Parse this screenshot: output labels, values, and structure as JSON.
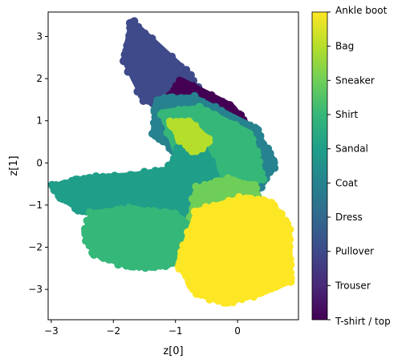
{
  "chart_data": {
    "type": "scatter",
    "title": "",
    "xlabel": "z[0]",
    "ylabel": "z[1]",
    "xlim": [
      -3.05,
      0.98
    ],
    "ylim": [
      -3.72,
      3.58
    ],
    "xticks": [
      -3,
      -2,
      -1,
      0
    ],
    "yticks": [
      -3,
      -2,
      -1,
      0,
      1,
      2,
      3
    ],
    "grid": false,
    "colorbar": {
      "colormap": "viridis",
      "range": [
        0,
        9
      ],
      "labels": [
        "T-shirt / top",
        "Trouser",
        "Pullover",
        "Dress",
        "Coat",
        "Sandal",
        "Shirt",
        "Sneaker",
        "Bag",
        "Ankle boot"
      ]
    },
    "clusters": [
      {
        "class": "Pullover",
        "color_index": 2,
        "description": "dense elongated diagonal band from upper-left to center",
        "polygon": [
          [
            -1.7,
            3.35
          ],
          [
            -0.85,
            2.2
          ],
          [
            -0.35,
            1.05
          ],
          [
            -0.6,
            0.95
          ],
          [
            -0.95,
            1.2
          ],
          [
            -1.5,
            1.5
          ],
          [
            -1.82,
            2.45
          ]
        ]
      },
      {
        "class": "T-shirt / top",
        "color_index": 0,
        "description": "diagonal band along upper-right",
        "polygon": [
          [
            -0.9,
            1.95
          ],
          [
            -0.1,
            1.35
          ],
          [
            0.3,
            0.65
          ],
          [
            0.0,
            0.2
          ],
          [
            -0.45,
            0.55
          ],
          [
            -1.2,
            0.8
          ],
          [
            -1.3,
            1.1
          ]
        ]
      },
      {
        "class": "Coat",
        "color_index": 4,
        "description": "mixed region in center-right",
        "polygon": [
          [
            -1.3,
            1.5
          ],
          [
            -0.7,
            1.55
          ],
          [
            0.25,
            0.85
          ],
          [
            0.6,
            0.0
          ],
          [
            0.3,
            -0.7
          ],
          [
            -0.35,
            -0.6
          ],
          [
            -0.9,
            0.2
          ],
          [
            -1.35,
            0.7
          ]
        ]
      },
      {
        "class": "Shirt",
        "color_index": 6,
        "description": "scattered points in center",
        "polygon": [
          [
            -1.2,
            1.2
          ],
          [
            -0.6,
            1.3
          ],
          [
            0.2,
            0.7
          ],
          [
            0.4,
            -0.4
          ],
          [
            -0.4,
            -0.3
          ],
          [
            -1.0,
            0.3
          ]
        ]
      },
      {
        "class": "Sandal",
        "color_index": 5,
        "description": "horizontal band on left side",
        "polygon": [
          [
            -2.95,
            -0.55
          ],
          [
            -2.4,
            -0.35
          ],
          [
            -1.7,
            -0.3
          ],
          [
            -1.1,
            -0.15
          ],
          [
            -0.95,
            0.35
          ],
          [
            -0.55,
            0.4
          ],
          [
            -0.25,
            -0.6
          ],
          [
            -0.6,
            -1.2
          ],
          [
            -1.5,
            -1.25
          ],
          [
            -2.5,
            -1.15
          ],
          [
            -2.85,
            -0.8
          ]
        ]
      },
      {
        "class": "Shirt",
        "color_index": 6,
        "description": "large blob lower-left",
        "polygon": [
          [
            -2.35,
            -1.2
          ],
          [
            -1.75,
            -1.1
          ],
          [
            -1.05,
            -1.2
          ],
          [
            -0.65,
            -1.55
          ],
          [
            -0.8,
            -2.3
          ],
          [
            -1.25,
            -2.45
          ],
          [
            -1.75,
            -2.45
          ],
          [
            -2.3,
            -2.15
          ],
          [
            -2.45,
            -1.7
          ]
        ]
      },
      {
        "class": "Sneaker",
        "color_index": 7,
        "description": "blob right-center",
        "polygon": [
          [
            -0.65,
            -0.6
          ],
          [
            -0.15,
            -0.4
          ],
          [
            0.25,
            -0.55
          ],
          [
            0.35,
            -1.2
          ],
          [
            0.05,
            -1.65
          ],
          [
            -0.4,
            -1.65
          ],
          [
            -0.75,
            -1.3
          ]
        ]
      },
      {
        "class": "Ankle boot",
        "color_index": 9,
        "description": "dense blob lower-right",
        "polygon": [
          [
            -0.65,
            -1.15
          ],
          [
            0.05,
            -0.85
          ],
          [
            0.55,
            -0.95
          ],
          [
            0.82,
            -1.55
          ],
          [
            0.85,
            -2.8
          ],
          [
            0.35,
            -3.1
          ],
          [
            -0.2,
            -3.3
          ],
          [
            -0.65,
            -3.1
          ],
          [
            -0.95,
            -2.4
          ]
        ]
      },
      {
        "class": "Bag",
        "color_index": 8,
        "description": "sparse points around center",
        "polygon": [
          [
            -1.05,
            0.95
          ],
          [
            -0.75,
            0.95
          ],
          [
            -0.45,
            0.5
          ],
          [
            -0.7,
            0.3
          ],
          [
            -0.95,
            0.6
          ]
        ]
      }
    ]
  }
}
